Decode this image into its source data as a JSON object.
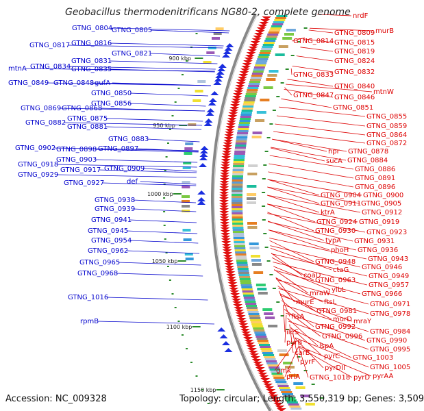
{
  "title": "Geobacillus thermodenitrificans NG80-2, complete genome",
  "footer": {
    "accession": "Accession: NC_009328",
    "summary": "Topology: circular; Length: 3,550,319 bp; Genes: 3,509"
  },
  "colors": {
    "left_label": "#0000cc",
    "right_label": "#dd0000",
    "backbone": "#888888",
    "tick_marker": "#2a8a2a",
    "gene_left": "#1a2ee0",
    "gene_right": "#e01010"
  },
  "kbp_markers": [
    "900 kbp",
    "950 kbp",
    "1000 kbp",
    "1050 kbp",
    "1100 kbp",
    "1150 kbp"
  ],
  "left_labels": [
    "GTNG_0804",
    "GTNG_0805",
    "GTNG_0817",
    "GTNG_0816",
    "GTNG_0821",
    "GTNG_0831",
    "mtnA",
    "GTNG_0834",
    "GTNG_0835",
    "GTNG_0849",
    "GTNG_0848",
    "gufA",
    "GTNG_0850",
    "GTNG_0856",
    "GTNG_0869",
    "GTNG_0868",
    "GTNG_0875",
    "GTNG_0882",
    "GTNG_0881",
    "GTNG_0883",
    "GTNG_0902",
    "GTNG_0898",
    "GTNG_0897",
    "GTNG_0903",
    "GTNG_0918",
    "GTNG_0917",
    "GTNG_0909",
    "GTNG_0929",
    "def",
    "GTNG_0927",
    "GTNG_0938",
    "GTNG_0939",
    "GTNG_0941",
    "GTNG_0945",
    "GTNG_0954",
    "GTNG_0962",
    "GTNG_0965",
    "GTNG_0968",
    "GTNG_1016",
    "rpmB"
  ],
  "right_labels": [
    "nrdF",
    "GTNG_0809",
    "murB",
    "GTNG_0814",
    "GTNG_0815",
    "GTNG_0819",
    "GTNG_0824",
    "GTNG_0833",
    "GTNG_0832",
    "GTNG_0840",
    "mtnW",
    "GTNG_0847",
    "GTNG_0846",
    "GTNG_0851",
    "GTNG_0855",
    "GTNG_0859",
    "GTNG_0864",
    "GTNG_0872",
    "hpr",
    "GTNG_0878",
    "sucA",
    "GTNG_0884",
    "GTNG_0886",
    "GTNG_0891",
    "GTNG_0896",
    "GTNG_0904",
    "GTNG_0900",
    "GTNG_0911",
    "GTNG_0905",
    "ktrA",
    "GTNG_0912",
    "GTNG_0924",
    "GTNG_0919",
    "GTNG_0930",
    "GTNG_0923",
    "typA",
    "GTNG_0931",
    "phoH",
    "GTNG_0936",
    "GTNG_0943",
    "GTNG_0948",
    "GTNG_0946",
    "ctaG",
    "coaD",
    "GTNG_0949",
    "GTNG_0963",
    "GTNG_0957",
    "ylbL",
    "mraW",
    "GTNG_0966",
    "ftsL",
    "murE",
    "GTNG_0971",
    "GTNG_0981",
    "GTNG_0978",
    "murD",
    "mraY",
    "ftsA",
    "GTNG_0992",
    "GTNG_0984",
    "GTNG_0996",
    "ileS",
    "GTNG_0990",
    "lspA",
    "pyrB",
    "GTNG_0995",
    "carB",
    "pyrC",
    "GTNG_1003",
    "pyrF",
    "pyrDII",
    "GTNG_1005",
    "gmk",
    "pyrAA",
    "priA",
    "GTNG_1018",
    "pyrD"
  ]
}
